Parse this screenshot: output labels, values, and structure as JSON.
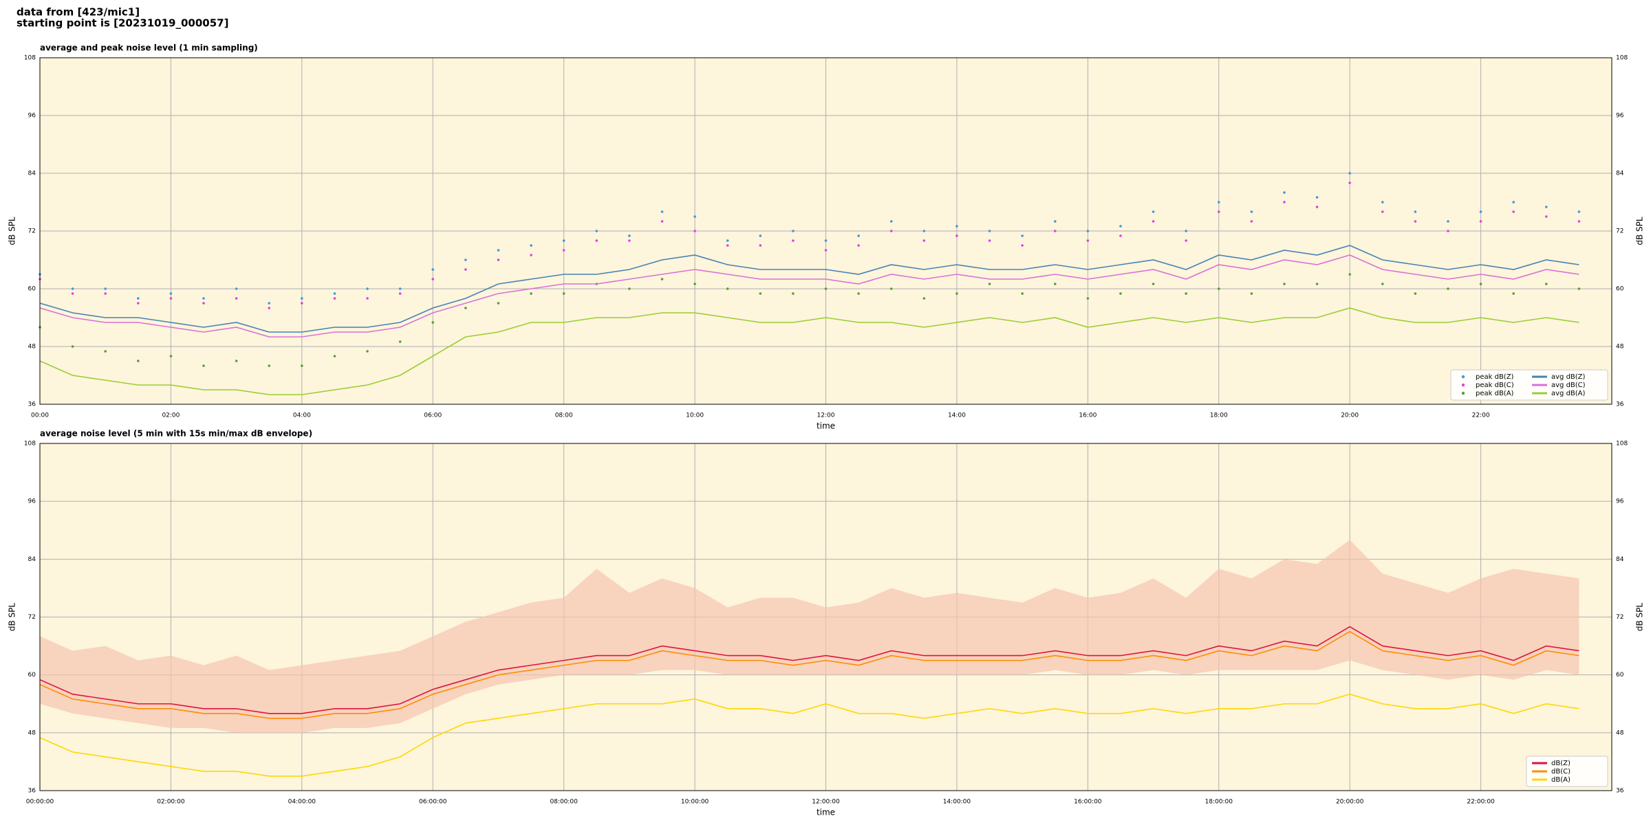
{
  "header": {
    "lines": [
      "data from [423/mic1]",
      "starting point is [20231019_000057]"
    ]
  },
  "chart_data": [
    {
      "type": "line",
      "title": "average and peak noise level (1 min sampling)",
      "x_label": "time",
      "y_label": "dB SPL",
      "background": "#fdf5dc",
      "grid": true,
      "legend": "lower right",
      "legend_ncol": 2,
      "xlim": [
        0,
        24
      ],
      "ylim": [
        36,
        108
      ],
      "xticks": [
        {
          "value": 0,
          "label": "00:00"
        },
        {
          "value": 2,
          "label": "02:00"
        },
        {
          "value": 4,
          "label": "04:00"
        },
        {
          "value": 6,
          "label": "06:00"
        },
        {
          "value": 8,
          "label": "08:00"
        },
        {
          "value": 10,
          "label": "10:00"
        },
        {
          "value": 12,
          "label": "12:00"
        },
        {
          "value": 14,
          "label": "14:00"
        },
        {
          "value": 16,
          "label": "16:00"
        },
        {
          "value": 18,
          "label": "18:00"
        },
        {
          "value": 20,
          "label": "20:00"
        },
        {
          "value": 22,
          "label": "22:00"
        }
      ],
      "yticks": [
        36,
        48,
        60,
        72,
        84,
        96,
        108
      ],
      "x": [
        0,
        0.5,
        1,
        1.5,
        2,
        2.5,
        3,
        3.5,
        4,
        4.5,
        5,
        5.5,
        6,
        6.5,
        7,
        7.5,
        8,
        8.5,
        9,
        9.5,
        10,
        10.5,
        11,
        11.5,
        12,
        12.5,
        13,
        13.5,
        14,
        14.5,
        15,
        15.5,
        16,
        16.5,
        17,
        17.5,
        18,
        18.5,
        19,
        19.5,
        20,
        20.5,
        21,
        21.5,
        22,
        22.5,
        23,
        23.5
      ],
      "series": [
        {
          "name": "peak dB(Z)",
          "style": "dots",
          "color": "#3a9ad9",
          "values": [
            63,
            60,
            60,
            58,
            59,
            58,
            60,
            57,
            58,
            59,
            60,
            60,
            64,
            66,
            68,
            69,
            70,
            72,
            71,
            76,
            75,
            70,
            71,
            72,
            70,
            71,
            74,
            72,
            73,
            72,
            71,
            74,
            72,
            73,
            76,
            72,
            78,
            76,
            80,
            79,
            84,
            78,
            76,
            74,
            76,
            78,
            77,
            76
          ]
        },
        {
          "name": "peak dB(C)",
          "style": "dots",
          "color": "#e040e0",
          "values": [
            62,
            59,
            59,
            57,
            58,
            57,
            58,
            56,
            57,
            58,
            58,
            59,
            62,
            64,
            66,
            67,
            68,
            70,
            70,
            74,
            72,
            69,
            69,
            70,
            68,
            69,
            72,
            70,
            71,
            70,
            69,
            72,
            70,
            71,
            74,
            70,
            76,
            74,
            78,
            77,
            82,
            76,
            74,
            72,
            74,
            76,
            75,
            74
          ]
        },
        {
          "name": "peak dB(A)",
          "style": "dots",
          "color": "#5a9a3a",
          "values": [
            52,
            48,
            47,
            45,
            46,
            44,
            45,
            44,
            44,
            46,
            47,
            49,
            53,
            56,
            57,
            59,
            59,
            61,
            60,
            62,
            61,
            60,
            59,
            59,
            60,
            59,
            60,
            58,
            59,
            61,
            59,
            61,
            58,
            59,
            61,
            59,
            60,
            59,
            61,
            61,
            63,
            61,
            59,
            60,
            61,
            59,
            61,
            60
          ]
        },
        {
          "name": "avg dB(Z)",
          "style": "line",
          "color": "#4682b4",
          "values": [
            57,
            55,
            54,
            54,
            53,
            52,
            53,
            51,
            51,
            52,
            52,
            53,
            56,
            58,
            61,
            62,
            63,
            63,
            64,
            66,
            67,
            65,
            64,
            64,
            64,
            63,
            65,
            64,
            65,
            64,
            64,
            65,
            64,
            65,
            66,
            64,
            67,
            66,
            68,
            67,
            69,
            66,
            65,
            64,
            65,
            64,
            66,
            65
          ]
        },
        {
          "name": "avg dB(C)",
          "style": "line",
          "color": "#da70d6",
          "values": [
            56,
            54,
            53,
            53,
            52,
            51,
            52,
            50,
            50,
            51,
            51,
            52,
            55,
            57,
            59,
            60,
            61,
            61,
            62,
            63,
            64,
            63,
            62,
            62,
            62,
            61,
            63,
            62,
            63,
            62,
            62,
            63,
            62,
            63,
            64,
            62,
            65,
            64,
            66,
            65,
            67,
            64,
            63,
            62,
            63,
            62,
            64,
            63
          ]
        },
        {
          "name": "avg dB(A)",
          "style": "line",
          "color": "#9acd32",
          "values": [
            45,
            42,
            41,
            40,
            40,
            39,
            39,
            38,
            38,
            39,
            40,
            42,
            46,
            50,
            51,
            53,
            53,
            54,
            54,
            55,
            55,
            54,
            53,
            53,
            54,
            53,
            53,
            52,
            53,
            54,
            53,
            54,
            52,
            53,
            54,
            53,
            54,
            53,
            54,
            54,
            56,
            54,
            53,
            53,
            54,
            53,
            54,
            53
          ]
        }
      ]
    },
    {
      "type": "line",
      "title": "average noise level (5 min with 15s min/max dB envelope)",
      "x_label": "time",
      "y_label": "dB SPL",
      "background": "#fdf5dc",
      "grid": true,
      "legend": "lower right",
      "legend_ncol": 1,
      "xlim": [
        0,
        24
      ],
      "ylim": [
        36,
        108
      ],
      "xticks": [
        {
          "value": 0,
          "label": "00:00:00"
        },
        {
          "value": 2,
          "label": "02:00:00"
        },
        {
          "value": 4,
          "label": "04:00:00"
        },
        {
          "value": 6,
          "label": "06:00:00"
        },
        {
          "value": 8,
          "label": "08:00:00"
        },
        {
          "value": 10,
          "label": "10:00:00"
        },
        {
          "value": 12,
          "label": "12:00:00"
        },
        {
          "value": 14,
          "label": "14:00:00"
        },
        {
          "value": 16,
          "label": "16:00:00"
        },
        {
          "value": 18,
          "label": "18:00:00"
        },
        {
          "value": 20,
          "label": "20:00:00"
        },
        {
          "value": 22,
          "label": "22:00:00"
        }
      ],
      "yticks": [
        36,
        48,
        60,
        72,
        84,
        96,
        108
      ],
      "x": [
        0,
        0.5,
        1,
        1.5,
        2,
        2.5,
        3,
        3.5,
        4,
        4.5,
        5,
        5.5,
        6,
        6.5,
        7,
        7.5,
        8,
        8.5,
        9,
        9.5,
        10,
        10.5,
        11,
        11.5,
        12,
        12.5,
        13,
        13.5,
        14,
        14.5,
        15,
        15.5,
        16,
        16.5,
        17,
        17.5,
        18,
        18.5,
        19,
        19.5,
        20,
        20.5,
        21,
        21.5,
        22,
        22.5,
        23,
        23.5
      ],
      "envelope": {
        "color": "#f5c4b0",
        "low": [
          54,
          52,
          51,
          50,
          49,
          49,
          48,
          48,
          48,
          49,
          49,
          50,
          53,
          56,
          58,
          59,
          60,
          60,
          60,
          61,
          61,
          60,
          60,
          60,
          60,
          60,
          60,
          60,
          60,
          60,
          60,
          61,
          60,
          60,
          61,
          60,
          61,
          61,
          61,
          61,
          63,
          61,
          60,
          59,
          60,
          59,
          61,
          60
        ],
        "high": [
          68,
          65,
          66,
          63,
          64,
          62,
          64,
          61,
          62,
          63,
          64,
          65,
          68,
          71,
          73,
          75,
          76,
          82,
          77,
          80,
          78,
          74,
          76,
          76,
          74,
          75,
          78,
          76,
          77,
          76,
          75,
          78,
          76,
          77,
          80,
          76,
          82,
          80,
          84,
          83,
          88,
          81,
          79,
          77,
          80,
          82,
          81,
          80
        ]
      },
      "series": [
        {
          "name": "dB(Z)",
          "style": "line",
          "color": "#dc143c",
          "values": [
            59,
            56,
            55,
            54,
            54,
            53,
            53,
            52,
            52,
            53,
            53,
            54,
            57,
            59,
            61,
            62,
            63,
            64,
            64,
            66,
            65,
            64,
            64,
            63,
            64,
            63,
            65,
            64,
            64,
            64,
            64,
            65,
            64,
            64,
            65,
            64,
            66,
            65,
            67,
            66,
            70,
            66,
            65,
            64,
            65,
            63,
            66,
            65
          ]
        },
        {
          "name": "dB(C)",
          "style": "line",
          "color": "#ff8c00",
          "values": [
            58,
            55,
            54,
            53,
            53,
            52,
            52,
            51,
            51,
            52,
            52,
            53,
            56,
            58,
            60,
            61,
            62,
            63,
            63,
            65,
            64,
            63,
            63,
            62,
            63,
            62,
            64,
            63,
            63,
            63,
            63,
            64,
            63,
            63,
            64,
            63,
            65,
            64,
            66,
            65,
            69,
            65,
            64,
            63,
            64,
            62,
            65,
            64
          ]
        },
        {
          "name": "dB(A)",
          "style": "line",
          "color": "#ffd700",
          "values": [
            47,
            44,
            43,
            42,
            41,
            40,
            40,
            39,
            39,
            40,
            41,
            43,
            47,
            50,
            51,
            52,
            53,
            54,
            54,
            54,
            55,
            53,
            53,
            52,
            54,
            52,
            52,
            51,
            52,
            53,
            52,
            53,
            52,
            52,
            53,
            52,
            53,
            53,
            54,
            54,
            56,
            54,
            53,
            53,
            54,
            52,
            54,
            53
          ]
        }
      ]
    }
  ]
}
